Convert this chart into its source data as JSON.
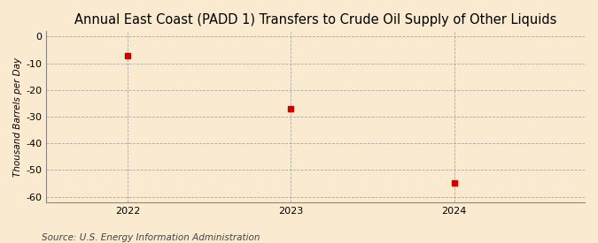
{
  "title": "Annual East Coast (PADD 1) Transfers to Crude Oil Supply of Other Liquids",
  "ylabel": "Thousand Barrels per Day",
  "source": "Source: U.S. Energy Information Administration",
  "x": [
    2022,
    2023,
    2024
  ],
  "y": [
    -7,
    -27,
    -55
  ],
  "ylim": [
    -62,
    2
  ],
  "xlim": [
    2021.5,
    2024.8
  ],
  "yticks": [
    0,
    -10,
    -20,
    -30,
    -40,
    -50,
    -60
  ],
  "xticks": [
    2022,
    2023,
    2024
  ],
  "marker_color": "#cc0000",
  "marker": "s",
  "marker_size": 4,
  "bg_color": "#faebd0",
  "grid_color": "#999999",
  "title_fontsize": 10.5,
  "ylabel_fontsize": 7.5,
  "tick_fontsize": 8,
  "source_fontsize": 7.5
}
